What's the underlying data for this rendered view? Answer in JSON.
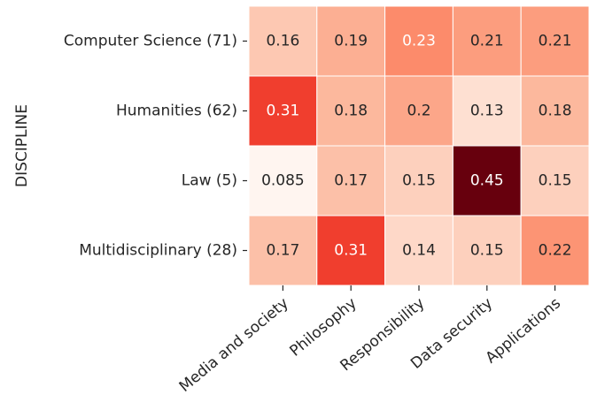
{
  "chart_data": {
    "type": "heatmap",
    "ylabel": "DISCIPLINE",
    "rows": [
      "Computer Science (71)",
      "Humanities (62)",
      "Law (5)",
      "Multidisciplinary (28)"
    ],
    "columns": [
      "Media and society",
      "Philosophy",
      "Responsibility",
      "Data security",
      "Applications"
    ],
    "values": [
      [
        0.16,
        0.19,
        0.23,
        0.21,
        0.21
      ],
      [
        0.31,
        0.18,
        0.2,
        0.13,
        0.18
      ],
      [
        0.085,
        0.17,
        0.15,
        0.45,
        0.15
      ],
      [
        0.17,
        0.31,
        0.14,
        0.15,
        0.22
      ]
    ],
    "colormap": [
      "#fff5f0",
      "#fee0d2",
      "#fcbba1",
      "#fc9272",
      "#fb6a4a",
      "#ef3b2c",
      "#cb181d",
      "#a50f15",
      "#67000d"
    ]
  }
}
